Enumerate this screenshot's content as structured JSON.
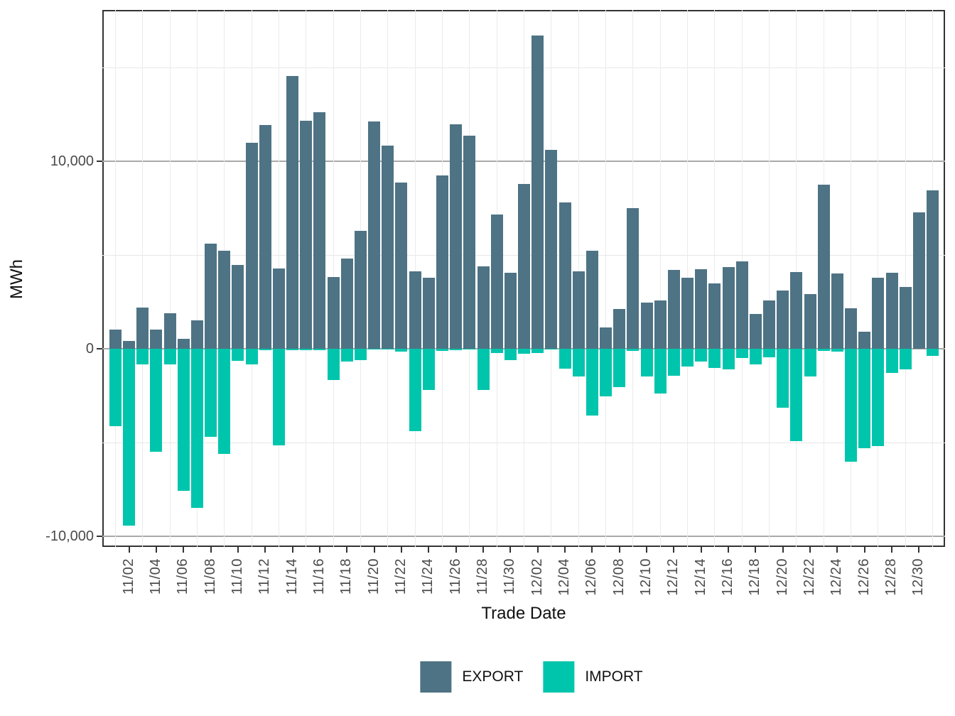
{
  "figure": {
    "y_axis": {
      "title": "MWh",
      "tick_labels": [
        "10,000",
        "0",
        "-10,000"
      ],
      "tick_values": [
        10000,
        0,
        -10000
      ]
    },
    "x_axis": {
      "title": "Trade Date",
      "tick_labels": [
        "11/02",
        "11/04",
        "11/06",
        "11/08",
        "11/10",
        "11/12",
        "11/14",
        "11/16",
        "11/18",
        "11/20",
        "11/22",
        "11/24",
        "11/26",
        "11/28",
        "11/30",
        "12/02",
        "12/04",
        "12/06",
        "12/08",
        "12/10",
        "12/12",
        "12/14",
        "12/16",
        "12/18",
        "12/20",
        "12/22",
        "12/24",
        "12/26",
        "12/28",
        "12/30"
      ]
    },
    "legend": {
      "position": "bottom",
      "items": [
        {
          "label": "EXPORT",
          "color": "#4e7384"
        },
        {
          "label": "IMPORT",
          "color": "#00c5ad"
        }
      ]
    }
  },
  "chart_data": {
    "type": "bar",
    "title": "",
    "xlabel": "Trade Date",
    "ylabel": "MWh",
    "ylim": [
      -10600,
      18100
    ],
    "grid": true,
    "legend_position": "bottom",
    "y_major_gridlines": [
      10000,
      0,
      -10000
    ],
    "y_minor_gridlines": [
      15000,
      5000,
      -5000
    ],
    "categories": [
      "11/01",
      "11/02",
      "11/03",
      "11/04",
      "11/05",
      "11/06",
      "11/07",
      "11/08",
      "11/09",
      "11/10",
      "11/11",
      "11/12",
      "11/13",
      "11/14",
      "11/15",
      "11/16",
      "11/17",
      "11/18",
      "11/19",
      "11/20",
      "11/21",
      "11/22",
      "11/23",
      "11/24",
      "11/25",
      "11/26",
      "11/27",
      "11/28",
      "11/29",
      "11/30",
      "12/01",
      "12/02",
      "12/03",
      "12/04",
      "12/05",
      "12/06",
      "12/07",
      "12/08",
      "12/09",
      "12/10",
      "12/11",
      "12/12",
      "12/13",
      "12/14",
      "12/15",
      "12/16",
      "12/17",
      "12/18",
      "12/19",
      "12/20",
      "12/21",
      "12/22",
      "12/23",
      "12/24",
      "12/25",
      "12/26",
      "12/27",
      "12/28",
      "12/29",
      "12/30",
      "12/31"
    ],
    "series": [
      {
        "name": "EXPORT",
        "color": "#4e7384",
        "values": [
          1040,
          400,
          2210,
          1040,
          1910,
          530,
          1530,
          5620,
          5240,
          4480,
          10970,
          11920,
          4290,
          14560,
          12150,
          12600,
          3820,
          4800,
          6300,
          12110,
          10840,
          8880,
          4140,
          3790,
          9240,
          11960,
          11350,
          4390,
          7150,
          4070,
          8800,
          16700,
          10620,
          7820,
          4140,
          5240,
          1150,
          2130,
          7510,
          2480,
          2570,
          4220,
          3780,
          4260,
          3500,
          4350,
          4650,
          1860,
          2570,
          3120,
          4100,
          2900,
          8740,
          4010,
          2170,
          920,
          3780,
          4060,
          3290,
          7280,
          8430
        ]
      },
      {
        "name": "IMPORT",
        "color": "#00c5ad",
        "values": [
          -4130,
          -9440,
          -850,
          -5510,
          -830,
          -7570,
          -8490,
          -4710,
          -5620,
          -640,
          -830,
          -60,
          -5150,
          -90,
          -90,
          -80,
          -1650,
          -680,
          -590,
          -40,
          -40,
          -150,
          -4390,
          -2190,
          -100,
          -80,
          -30,
          -2200,
          -210,
          -590,
          -280,
          -230,
          -40,
          -1060,
          -1490,
          -3560,
          -2550,
          -2050,
          -130,
          -1460,
          -2390,
          -1440,
          -930,
          -680,
          -1020,
          -1080,
          -510,
          -830,
          -450,
          -3160,
          -4940,
          -1460,
          -130,
          -160,
          -6040,
          -5310,
          -5180,
          -1270,
          -1080,
          0,
          -380
        ]
      }
    ]
  }
}
